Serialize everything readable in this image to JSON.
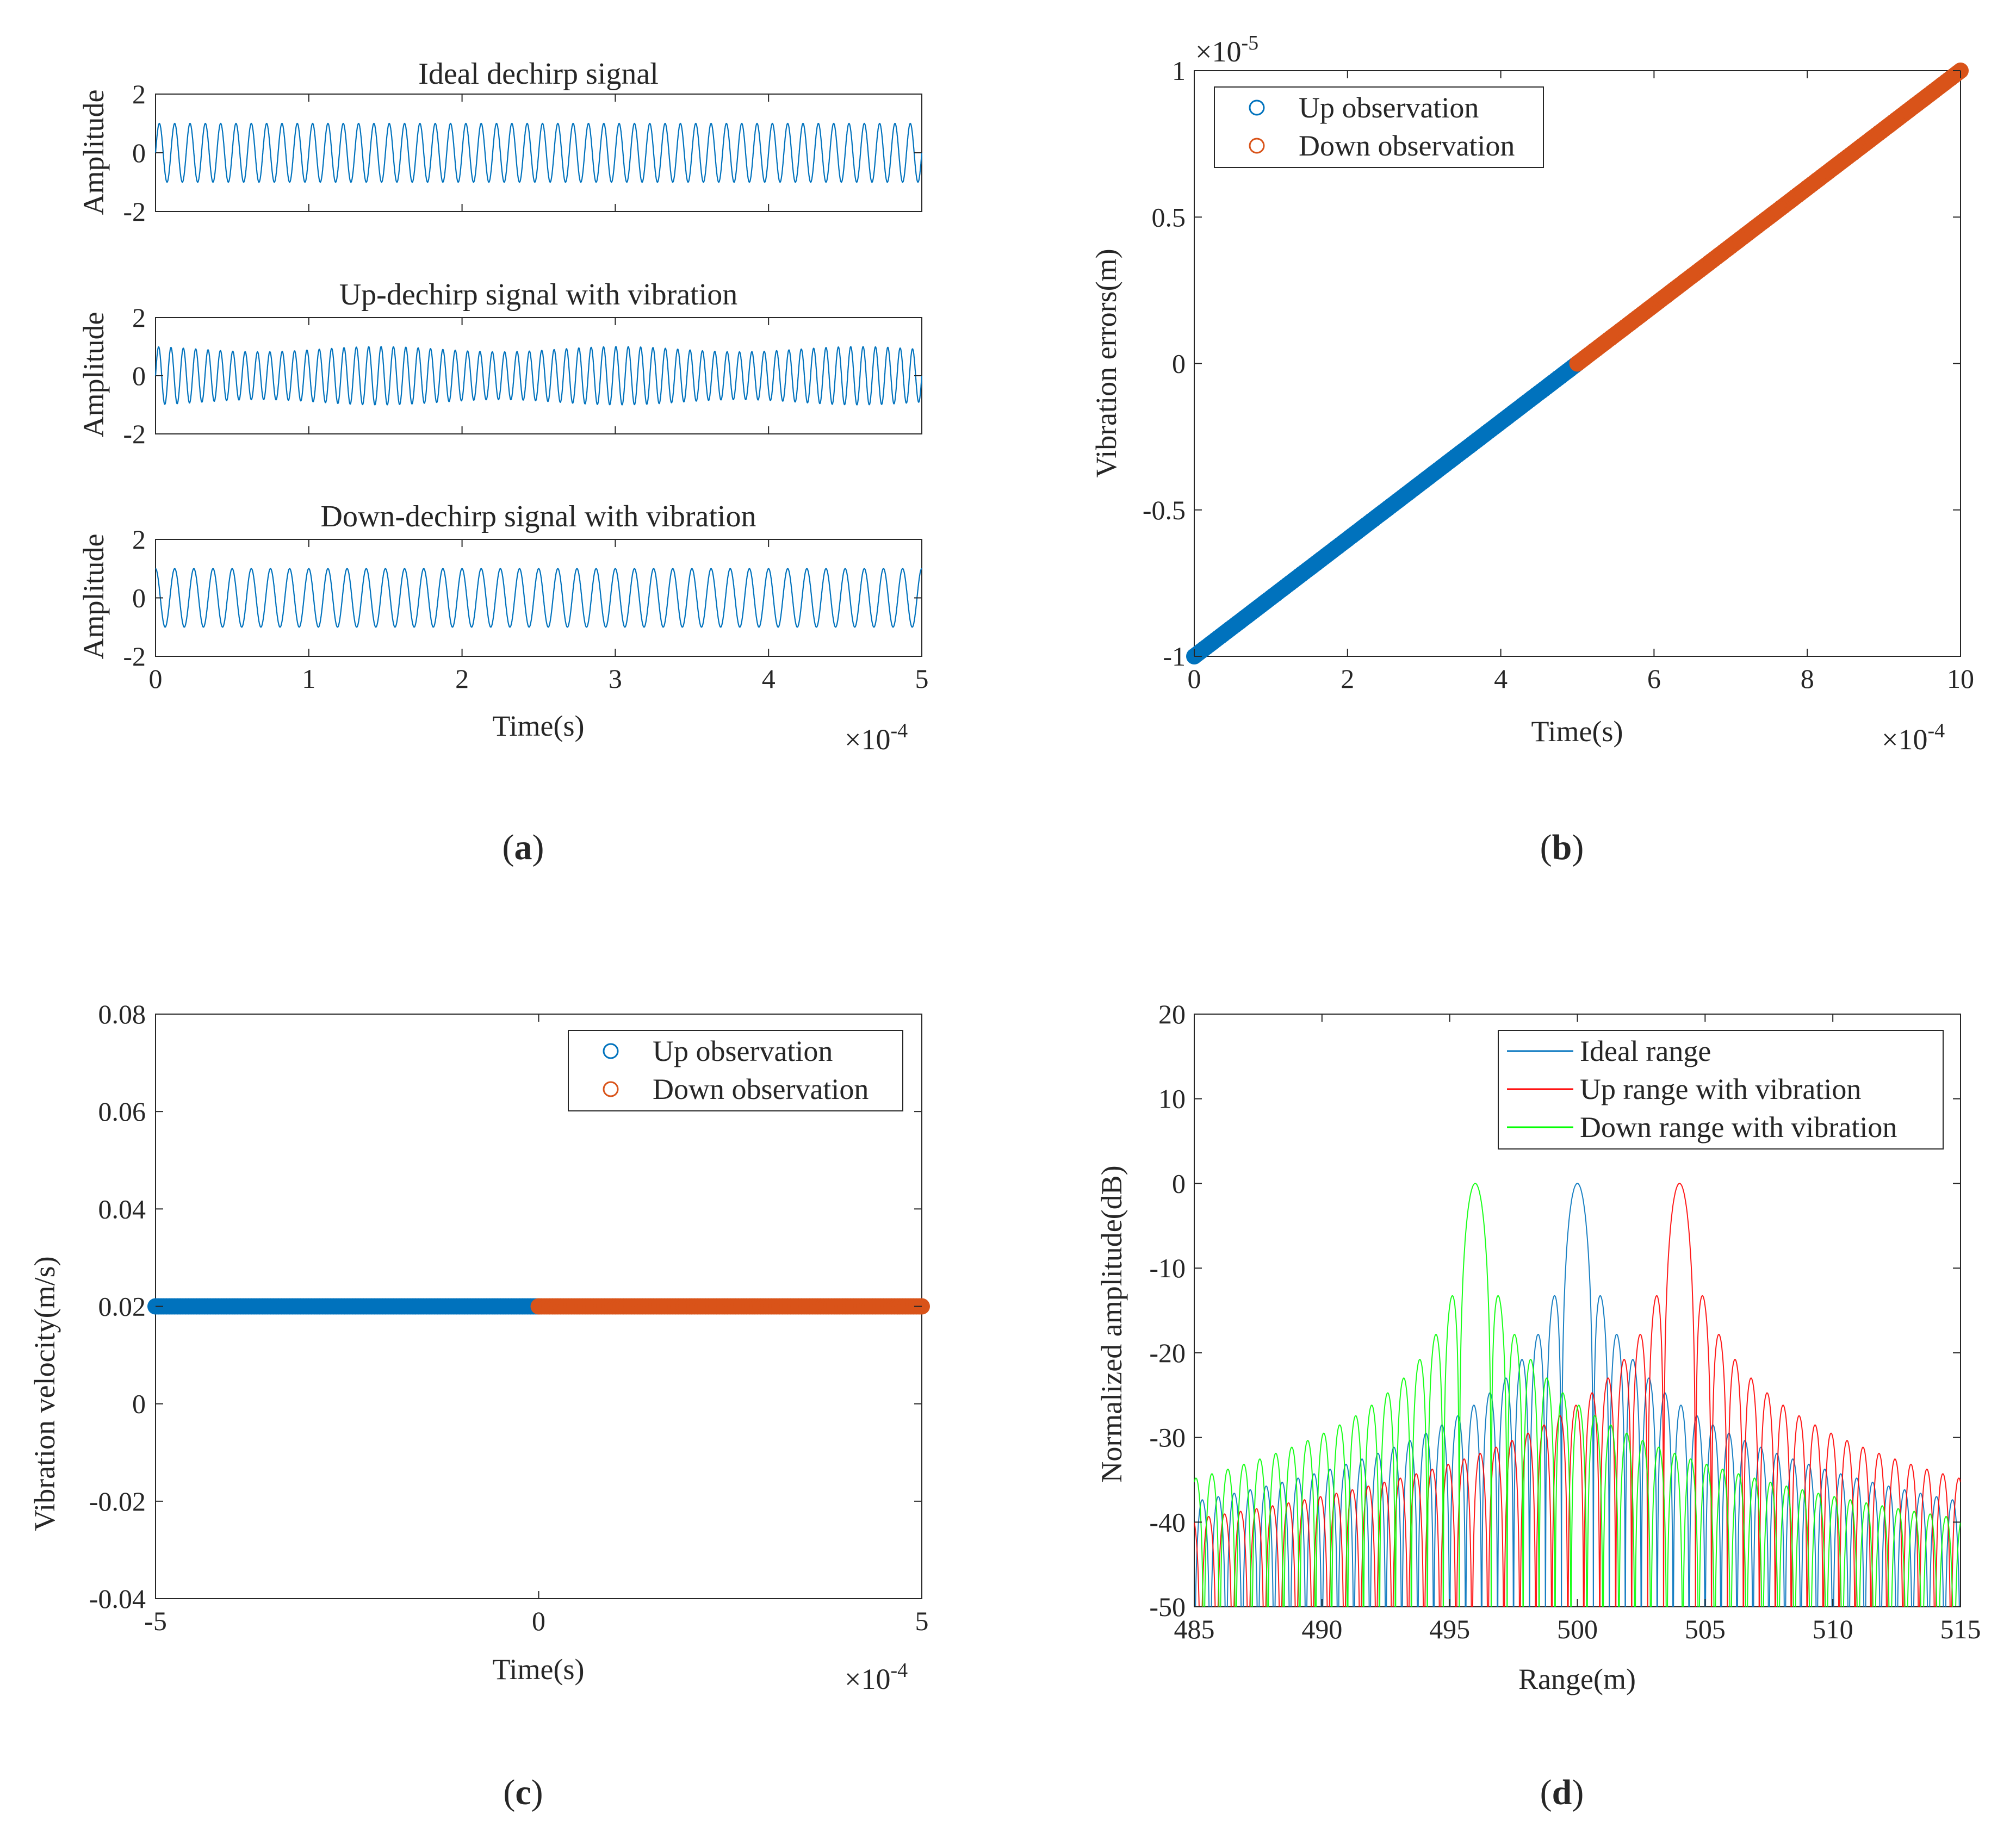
{
  "figure": {
    "captions": [
      "(a)",
      "(b)",
      "(c)",
      "(d)"
    ],
    "caption_letters": [
      "a",
      "b",
      "c",
      "d"
    ]
  },
  "chart_data": [
    {
      "id": "a",
      "type": "line",
      "layout": "three stacked subplots sharing x-axis",
      "xlabel": "Time(s)",
      "x_exponent": "×10^-4",
      "x_exponent_base": "×10",
      "x_exponent_power": "-4",
      "xlim": [
        0,
        5
      ],
      "xticks": [
        "0",
        "1",
        "2",
        "3",
        "4",
        "5"
      ],
      "color": "#0072BD",
      "subplots": [
        {
          "title": "Ideal dechirp signal",
          "ylabel": "Amplitude",
          "ylim": [
            -2,
            2
          ],
          "yticks": [
            "2",
            "0",
            "-2"
          ],
          "amplitude": 1,
          "cycles": 50,
          "envelope": "constant"
        },
        {
          "title": "Up-dechirp signal with vibration",
          "ylabel": "Amplitude",
          "ylim": [
            -2,
            2
          ],
          "yticks": [
            "2",
            "0",
            "-2"
          ],
          "amplitude": 1,
          "cycles": 62,
          "envelope": "slightly varying 0.82-1.0"
        },
        {
          "title": "Down-dechirp signal with vibration",
          "ylabel": "Amplitude",
          "ylim": [
            -2,
            2
          ],
          "yticks": [
            "2",
            "0",
            "-2"
          ],
          "amplitude": 1,
          "cycles": 40,
          "envelope": "constant"
        }
      ]
    },
    {
      "id": "b",
      "type": "scatter",
      "xlabel": "Time(s)",
      "ylabel": "Vibration errors(m)",
      "x_exponent_base": "×10",
      "x_exponent_power": "-4",
      "y_exponent_base": "×10",
      "y_exponent_power": "-5",
      "xlim": [
        0,
        10
      ],
      "ylim": [
        -1,
        1
      ],
      "xticks": [
        "0",
        "2",
        "4",
        "6",
        "8",
        "10"
      ],
      "yticks": [
        "1",
        "0.5",
        "0",
        "-0.5",
        "-1"
      ],
      "legend": [
        "Up observation",
        "Down observation"
      ],
      "legend_position": "top-left",
      "series": [
        {
          "name": "Up observation",
          "color": "#0072BD",
          "x_range": [
            0,
            5
          ],
          "y_range": [
            -1,
            0
          ]
        },
        {
          "name": "Down observation",
          "color": "#D95319",
          "x_range": [
            5,
            10
          ],
          "y_range": [
            0,
            1
          ]
        }
      ]
    },
    {
      "id": "c",
      "type": "scatter",
      "xlabel": "Time(s)",
      "ylabel": "Vibration velocity(m/s)",
      "x_exponent_base": "×10",
      "x_exponent_power": "-4",
      "xlim": [
        -5,
        5
      ],
      "ylim": [
        -0.04,
        0.08
      ],
      "xticks": [
        "-5",
        "0",
        "5"
      ],
      "yticks": [
        "0.08",
        "0.06",
        "0.04",
        "0.02",
        "0",
        "-0.02",
        "-0.04"
      ],
      "legend": [
        "Up observation",
        "Down observation"
      ],
      "legend_position": "top-right",
      "series": [
        {
          "name": "Up observation",
          "color": "#0072BD",
          "x_range": [
            -5,
            0
          ],
          "value": 0.02
        },
        {
          "name": "Down observation",
          "color": "#D95319",
          "x_range": [
            0,
            5
          ],
          "value": 0.02
        }
      ]
    },
    {
      "id": "d",
      "type": "line",
      "xlabel": "Range(m)",
      "ylabel": "Normalized amplitude(dB)",
      "xlim": [
        485,
        515
      ],
      "ylim": [
        -50,
        20
      ],
      "xticks": [
        "485",
        "490",
        "495",
        "500",
        "505",
        "510",
        "515"
      ],
      "yticks": [
        "20",
        "10",
        "0",
        "-10",
        "-20",
        "-30",
        "-40",
        "-50"
      ],
      "legend": [
        "Ideal range",
        "Up range with vibration",
        "Down range with vibration"
      ],
      "legend_position": "top-right",
      "series": [
        {
          "name": "Ideal range",
          "color": "#0072BD",
          "peak_x": 500,
          "peak_db": 0,
          "sidelobe_db": -13.3
        },
        {
          "name": "Up range with vibration",
          "color": "#FF0000",
          "peak_x": 504,
          "peak_db": 0,
          "sidelobe_db": -13.3
        },
        {
          "name": "Down range with vibration",
          "color": "#00FF00",
          "peak_x": 496,
          "peak_db": 0,
          "sidelobe_db": -13.3
        }
      ]
    }
  ]
}
